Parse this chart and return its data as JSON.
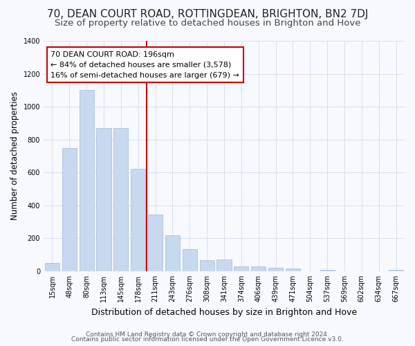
{
  "title": "70, DEAN COURT ROAD, ROTTINGDEAN, BRIGHTON, BN2 7DJ",
  "subtitle": "Size of property relative to detached houses in Brighton and Hove",
  "xlabel": "Distribution of detached houses by size in Brighton and Hove",
  "ylabel": "Number of detached properties",
  "categories": [
    "15sqm",
    "48sqm",
    "80sqm",
    "113sqm",
    "145sqm",
    "178sqm",
    "211sqm",
    "243sqm",
    "276sqm",
    "308sqm",
    "341sqm",
    "374sqm",
    "406sqm",
    "439sqm",
    "471sqm",
    "504sqm",
    "537sqm",
    "569sqm",
    "602sqm",
    "634sqm",
    "667sqm"
  ],
  "values": [
    50,
    750,
    1100,
    870,
    870,
    620,
    345,
    220,
    135,
    65,
    70,
    30,
    30,
    20,
    15,
    0,
    10,
    0,
    0,
    0,
    10
  ],
  "bar_color": "#c8d8ef",
  "bar_edge_color": "#a0b8d8",
  "vline_index": 6,
  "vline_color": "#cc0000",
  "ann_line1": "70 DEAN COURT ROAD: 196sqm",
  "ann_line2": "← 84% of detached houses are smaller (3,578)",
  "ann_line3": "16% of semi-detached houses are larger (679) →",
  "annotation_box_color": "#ffffff",
  "annotation_box_edge": "#cc0000",
  "ylim": [
    0,
    1400
  ],
  "yticks": [
    0,
    200,
    400,
    600,
    800,
    1000,
    1200,
    1400
  ],
  "bg_color": "#f7f9ff",
  "grid_color": "#d8dff0",
  "footer1": "Contains HM Land Registry data © Crown copyright and database right 2024.",
  "footer2": "Contains public sector information licensed under the Open Government Licence v3.0.",
  "title_fontsize": 11,
  "subtitle_fontsize": 9.5,
  "xlabel_fontsize": 9,
  "ylabel_fontsize": 8.5,
  "tick_fontsize": 7,
  "annotation_fontsize": 8,
  "footer_fontsize": 6.5
}
